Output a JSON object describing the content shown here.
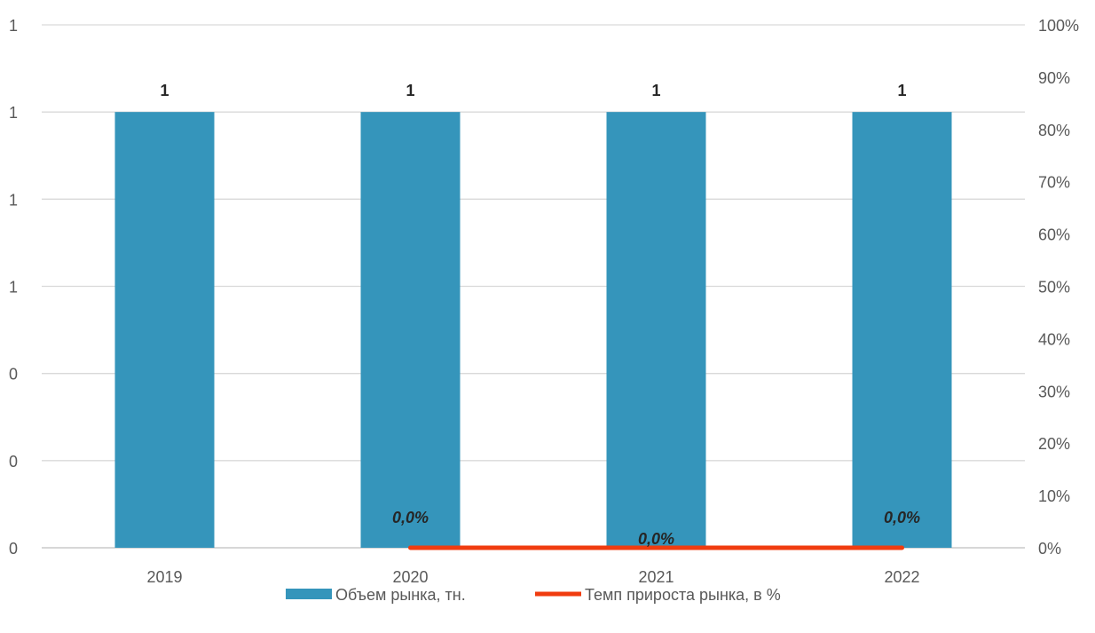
{
  "chart_data": {
    "type": "bar",
    "categories": [
      "2019",
      "2020",
      "2021",
      "2022"
    ],
    "series": [
      {
        "name": "Объем рынка, тн.",
        "kind": "bar",
        "axis": "left",
        "color": "#3595BB",
        "values": [
          1,
          1,
          1,
          1
        ],
        "labels": [
          "1",
          "1",
          "1",
          "1"
        ]
      },
      {
        "name": "Темп прироста рынка, в %",
        "kind": "line",
        "axis": "right",
        "color": "#F03C0F",
        "values": [
          null,
          0,
          0,
          0
        ],
        "labels": [
          "",
          "0,0%",
          "0,0%",
          "0,0%"
        ]
      }
    ],
    "left_axis": {
      "ylim": [
        0,
        1.2
      ],
      "ticks": [
        0,
        0.2,
        0.4,
        0.6,
        0.8,
        1.0,
        1.2
      ],
      "tick_labels": [
        "0",
        "0",
        "0",
        "1",
        "1",
        "1",
        "1"
      ]
    },
    "right_axis": {
      "ylim": [
        0,
        100
      ],
      "ticks": [
        0,
        10,
        20,
        30,
        40,
        50,
        60,
        70,
        80,
        90,
        100
      ],
      "tick_labels": [
        "0%",
        "10%",
        "20%",
        "30%",
        "40%",
        "50%",
        "60%",
        "70%",
        "80%",
        "90%",
        "100%"
      ]
    },
    "grid": true,
    "legend": "bottom-center"
  }
}
